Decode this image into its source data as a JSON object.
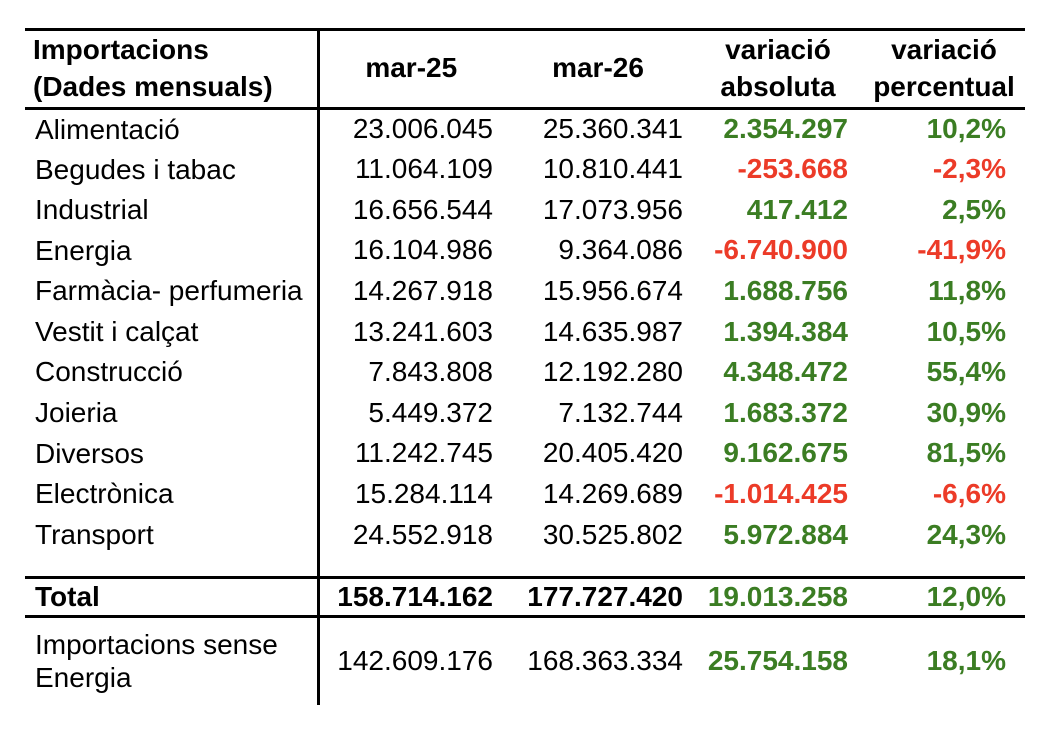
{
  "colors": {
    "positive": "#3B7D23",
    "negative": "#EC3B28",
    "text": "#000000",
    "border": "#000000",
    "background": "#FFFFFF"
  },
  "table": {
    "header": {
      "col1_line1": "Importacions",
      "col1_line2": "(Dades mensuals)",
      "col2": "mar-25",
      "col3": "mar-26",
      "col4_line1": "variació",
      "col4_line2": "absoluta",
      "col5_line1": "variació",
      "col5_line2": "percentual"
    },
    "rows": [
      {
        "label": "Alimentació",
        "mar25": "23.006.045",
        "mar26": "25.360.341",
        "abs": "2.354.297",
        "pct": "10,2%"
      },
      {
        "label": "Begudes i tabac",
        "mar25": "11.064.109",
        "mar26": "10.810.441",
        "abs": "-253.668",
        "pct": "-2,3%"
      },
      {
        "label": "Industrial",
        "mar25": "16.656.544",
        "mar26": "17.073.956",
        "abs": "417.412",
        "pct": "2,5%"
      },
      {
        "label": "Energia",
        "mar25": "16.104.986",
        "mar26": "9.364.086",
        "abs": "-6.740.900",
        "pct": "-41,9%"
      },
      {
        "label": "Farmàcia- perfumeria",
        "mar25": "14.267.918",
        "mar26": "15.956.674",
        "abs": "1.688.756",
        "pct": "11,8%"
      },
      {
        "label": "Vestit i calçat",
        "mar25": "13.241.603",
        "mar26": "14.635.987",
        "abs": "1.394.384",
        "pct": "10,5%"
      },
      {
        "label": "Construcció",
        "mar25": "7.843.808",
        "mar26": "12.192.280",
        "abs": "4.348.472",
        "pct": "55,4%"
      },
      {
        "label": "Joieria",
        "mar25": "5.449.372",
        "mar26": "7.132.744",
        "abs": "1.683.372",
        "pct": "30,9%"
      },
      {
        "label": "Diversos",
        "mar25": "11.242.745",
        "mar26": "20.405.420",
        "abs": "9.162.675",
        "pct": "81,5%"
      },
      {
        "label": "Electrònica",
        "mar25": "15.284.114",
        "mar26": "14.269.689",
        "abs": "-1.014.425",
        "pct": "-6,6%"
      },
      {
        "label": "Transport",
        "mar25": "24.552.918",
        "mar26": "30.525.802",
        "abs": "5.972.884",
        "pct": "24,3%"
      }
    ],
    "total": {
      "label": "Total",
      "mar25": "158.714.162",
      "mar26": "177.727.420",
      "abs": "19.013.258",
      "pct": "12,0%"
    },
    "footer": {
      "label_line1": "Importacions sense",
      "label_line2": "Energia",
      "mar25": "142.609.176",
      "mar26": "168.363.334",
      "abs": "25.754.158",
      "pct": "18,1%"
    }
  }
}
